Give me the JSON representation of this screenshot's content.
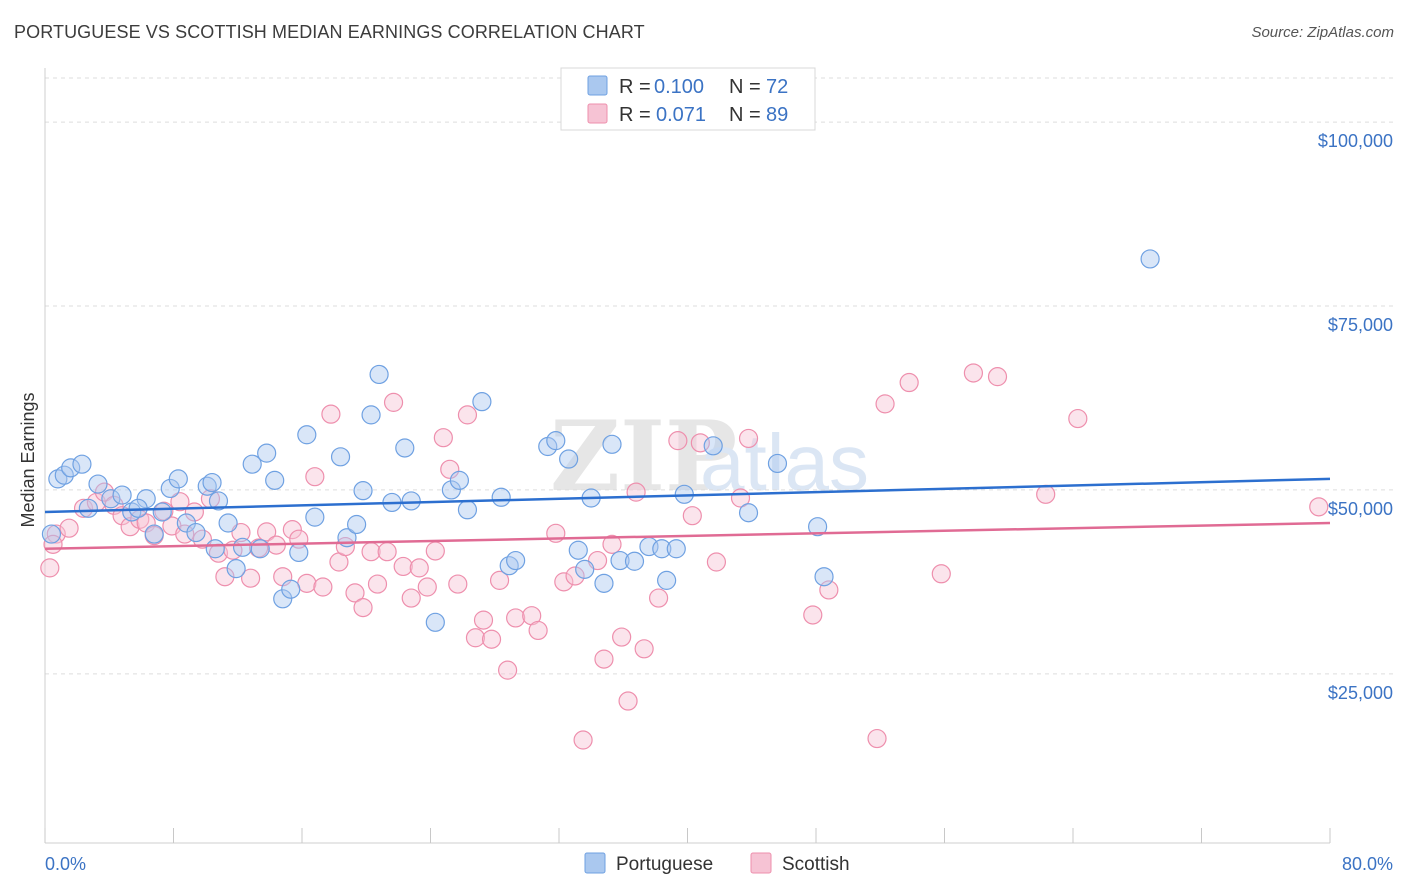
{
  "title": "PORTUGUESE VS SCOTTISH MEDIAN EARNINGS CORRELATION CHART",
  "source": "Source: ZipAtlas.com",
  "watermark": {
    "zip": "ZIP",
    "atlas": "atlas"
  },
  "colors": {
    "portuguese": "#6fa1e2",
    "portuguese_fill": "#aac8ef",
    "portuguese_line": "#2c6fcf",
    "scottish": "#ee8fad",
    "scottish_fill": "#f6c3d4",
    "scottish_line": "#e06b94",
    "grid": "#dddddd",
    "tick_label": "#3b73c4"
  },
  "legend": {
    "rows": [
      {
        "r_label": "R = ",
        "r_value": "0.100",
        "n_label": "N = ",
        "n_value": "72"
      },
      {
        "r_label": "R = ",
        "r_value": "0.071",
        "n_label": "N = ",
        "n_value": "89"
      }
    ]
  },
  "chart_data": {
    "type": "scatter",
    "title": "PORTUGUESE VS SCOTTISH MEDIAN EARNINGS CORRELATION CHART",
    "xlabel": "",
    "ylabel": "Median Earnings",
    "xlim": [
      0,
      80
    ],
    "ylim": [
      2000,
      106000
    ],
    "x_tick_labels": [
      "0.0%",
      "80.0%"
    ],
    "y_ticks": [
      25000,
      50000,
      75000,
      100000
    ],
    "y_tick_labels": [
      "$25,000",
      "$50,000",
      "$75,000",
      "$100,000"
    ],
    "grid": true,
    "legend_position": "top-center",
    "series": [
      {
        "name": "Portuguese",
        "trend": {
          "x": [
            0,
            80
          ],
          "y": [
            47000,
            51500
          ]
        },
        "points": [
          [
            0.8,
            51500
          ],
          [
            1.2,
            52000
          ],
          [
            1.6,
            53000
          ],
          [
            2.3,
            53500
          ],
          [
            2.7,
            47500
          ],
          [
            3.3,
            50800
          ],
          [
            4.1,
            48800
          ],
          [
            4.8,
            49300
          ],
          [
            5.4,
            47000
          ],
          [
            6.3,
            48800
          ],
          [
            6.8,
            44000
          ],
          [
            7.3,
            47000
          ],
          [
            7.8,
            50200
          ],
          [
            8.3,
            51500
          ],
          [
            8.8,
            45500
          ],
          [
            9.4,
            44200
          ],
          [
            10.1,
            50500
          ],
          [
            10.4,
            51000
          ],
          [
            10.8,
            48500
          ],
          [
            11.4,
            45500
          ],
          [
            11.9,
            39300
          ],
          [
            12.3,
            42200
          ],
          [
            12.9,
            53500
          ],
          [
            13.4,
            42000
          ],
          [
            13.8,
            55000
          ],
          [
            14.3,
            51300
          ],
          [
            14.8,
            35200
          ],
          [
            15.3,
            36500
          ],
          [
            15.8,
            41500
          ],
          [
            16.3,
            57500
          ],
          [
            16.8,
            46300
          ],
          [
            18.4,
            54500
          ],
          [
            18.8,
            43500
          ],
          [
            19.4,
            45300
          ],
          [
            19.8,
            49900
          ],
          [
            20.3,
            60200
          ],
          [
            20.8,
            65700
          ],
          [
            21.6,
            48300
          ],
          [
            22.4,
            55700
          ],
          [
            22.8,
            48500
          ],
          [
            24.3,
            32000
          ],
          [
            25.3,
            50000
          ],
          [
            25.8,
            51300
          ],
          [
            26.3,
            47300
          ],
          [
            27.2,
            62000
          ],
          [
            28.4,
            49000
          ],
          [
            28.9,
            39700
          ],
          [
            29.3,
            40400
          ],
          [
            31.3,
            55900
          ],
          [
            31.8,
            56700
          ],
          [
            32.6,
            54200
          ],
          [
            33.2,
            41800
          ],
          [
            33.6,
            39200
          ],
          [
            34.0,
            48900
          ],
          [
            34.8,
            37300
          ],
          [
            35.3,
            56200
          ],
          [
            35.8,
            40400
          ],
          [
            36.7,
            40300
          ],
          [
            37.6,
            42300
          ],
          [
            38.4,
            42000
          ],
          [
            38.7,
            37700
          ],
          [
            39.3,
            42000
          ],
          [
            39.8,
            49400
          ],
          [
            41.6,
            56000
          ],
          [
            43.8,
            46900
          ],
          [
            45.6,
            53600
          ],
          [
            48.1,
            45000
          ],
          [
            48.5,
            38200
          ],
          [
            68.8,
            81400
          ],
          [
            0.4,
            44000
          ],
          [
            5.8,
            47500
          ],
          [
            10.6,
            42000
          ]
        ]
      },
      {
        "name": "Scottish",
        "trend": {
          "x": [
            0,
            80
          ],
          "y": [
            42000,
            45500
          ]
        },
        "points": [
          [
            0.3,
            39400
          ],
          [
            0.7,
            44000
          ],
          [
            1.5,
            44800
          ],
          [
            2.4,
            47500
          ],
          [
            3.2,
            48300
          ],
          [
            3.7,
            49700
          ],
          [
            4.3,
            47900
          ],
          [
            4.8,
            46500
          ],
          [
            5.3,
            45000
          ],
          [
            5.9,
            46000
          ],
          [
            6.3,
            45500
          ],
          [
            6.8,
            43800
          ],
          [
            7.4,
            47100
          ],
          [
            7.9,
            45100
          ],
          [
            8.4,
            48400
          ],
          [
            8.7,
            44000
          ],
          [
            9.3,
            47000
          ],
          [
            9.8,
            43300
          ],
          [
            10.3,
            48800
          ],
          [
            10.8,
            41400
          ],
          [
            11.2,
            38200
          ],
          [
            11.7,
            41800
          ],
          [
            12.2,
            44200
          ],
          [
            12.8,
            38000
          ],
          [
            13.3,
            42100
          ],
          [
            13.8,
            44300
          ],
          [
            14.4,
            42500
          ],
          [
            14.8,
            38200
          ],
          [
            15.4,
            44600
          ],
          [
            15.8,
            43300
          ],
          [
            16.3,
            37300
          ],
          [
            16.8,
            51800
          ],
          [
            17.3,
            36800
          ],
          [
            17.8,
            60300
          ],
          [
            18.3,
            40200
          ],
          [
            18.7,
            42300
          ],
          [
            19.3,
            36000
          ],
          [
            19.8,
            34000
          ],
          [
            20.3,
            41600
          ],
          [
            20.7,
            37200
          ],
          [
            21.3,
            41600
          ],
          [
            21.7,
            61900
          ],
          [
            22.3,
            39600
          ],
          [
            22.8,
            35300
          ],
          [
            23.3,
            39400
          ],
          [
            23.8,
            36800
          ],
          [
            24.3,
            41700
          ],
          [
            24.8,
            57100
          ],
          [
            25.2,
            52800
          ],
          [
            25.7,
            37200
          ],
          [
            26.3,
            60200
          ],
          [
            26.8,
            29900
          ],
          [
            27.3,
            32300
          ],
          [
            27.8,
            29700
          ],
          [
            28.3,
            37700
          ],
          [
            28.8,
            25500
          ],
          [
            29.3,
            32600
          ],
          [
            30.3,
            32900
          ],
          [
            30.7,
            30900
          ],
          [
            31.8,
            44100
          ],
          [
            32.3,
            37500
          ],
          [
            33.0,
            38300
          ],
          [
            33.5,
            16000
          ],
          [
            34.4,
            40400
          ],
          [
            34.8,
            27000
          ],
          [
            35.3,
            42600
          ],
          [
            35.9,
            30000
          ],
          [
            36.3,
            21300
          ],
          [
            36.8,
            49700
          ],
          [
            37.3,
            28400
          ],
          [
            38.2,
            35300
          ],
          [
            39.4,
            56700
          ],
          [
            40.3,
            46500
          ],
          [
            40.8,
            56400
          ],
          [
            41.8,
            40200
          ],
          [
            43.3,
            48900
          ],
          [
            43.8,
            57000
          ],
          [
            47.8,
            33000
          ],
          [
            48.8,
            36400
          ],
          [
            51.8,
            16200
          ],
          [
            52.3,
            61700
          ],
          [
            53.8,
            64600
          ],
          [
            55.8,
            38600
          ],
          [
            57.8,
            65900
          ],
          [
            59.3,
            65400
          ],
          [
            62.3,
            49400
          ],
          [
            64.3,
            59700
          ],
          [
            79.3,
            47700
          ],
          [
            0.5,
            42600
          ]
        ]
      }
    ]
  },
  "bottom_legend": {
    "items": [
      {
        "label": "Portuguese"
      },
      {
        "label": "Scottish"
      }
    ]
  }
}
